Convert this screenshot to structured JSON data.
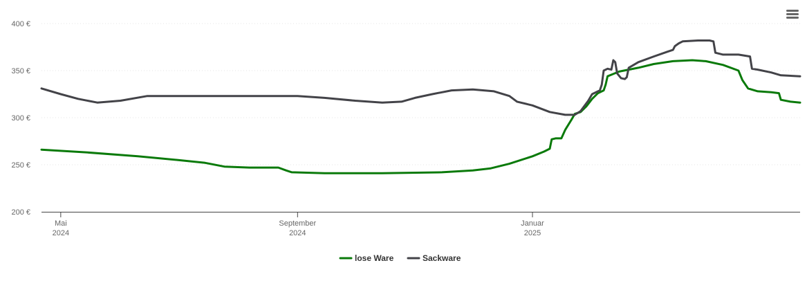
{
  "chart_data": {
    "type": "line",
    "title": "",
    "xlabel": "",
    "ylabel": "",
    "ylim": [
      200,
      400
    ],
    "yticks": [
      200,
      250,
      300,
      350,
      400
    ],
    "ytick_labels": [
      "200 €",
      "250 €",
      "300 €",
      "350 €",
      "400 €"
    ],
    "xticks": [
      {
        "date": "2024-05-01",
        "line1": "Mai",
        "line2": "2024"
      },
      {
        "date": "2024-09-01",
        "line1": "September",
        "line2": "2024"
      },
      {
        "date": "2025-01-01",
        "line1": "Januar",
        "line2": "2025"
      }
    ],
    "grid": true,
    "legend_position": "bottom-center",
    "series": [
      {
        "name": "lose Ware",
        "color": "#0a7a0a",
        "points": [
          [
            "2024-04-21",
            266
          ],
          [
            "2024-05-15",
            263
          ],
          [
            "2024-06-10",
            259
          ],
          [
            "2024-07-01",
            255
          ],
          [
            "2024-07-15",
            252
          ],
          [
            "2024-07-25",
            248
          ],
          [
            "2024-08-07",
            247
          ],
          [
            "2024-08-15",
            247
          ],
          [
            "2024-08-22",
            247
          ],
          [
            "2024-08-26",
            244
          ],
          [
            "2024-08-29",
            242
          ],
          [
            "2024-09-15",
            241
          ],
          [
            "2024-10-15",
            241
          ],
          [
            "2024-11-15",
            242
          ],
          [
            "2024-12-01",
            244
          ],
          [
            "2024-12-10",
            246
          ],
          [
            "2024-12-20",
            251
          ],
          [
            "2025-01-01",
            259
          ],
          [
            "2025-01-07",
            264
          ],
          [
            "2025-01-10",
            267
          ],
          [
            "2025-01-11",
            277
          ],
          [
            "2025-01-13",
            278
          ],
          [
            "2025-01-16",
            278
          ],
          [
            "2025-01-18",
            287
          ],
          [
            "2025-01-21",
            297
          ],
          [
            "2025-01-23",
            304
          ],
          [
            "2025-01-26",
            306
          ],
          [
            "2025-01-29",
            312
          ],
          [
            "2025-02-01",
            320
          ],
          [
            "2025-02-04",
            326
          ],
          [
            "2025-02-07",
            329
          ],
          [
            "2025-02-08",
            335
          ],
          [
            "2025-02-09",
            344
          ],
          [
            "2025-02-15",
            349
          ],
          [
            "2025-02-25",
            353
          ],
          [
            "2025-03-05",
            357
          ],
          [
            "2025-03-15",
            360
          ],
          [
            "2025-03-25",
            361
          ],
          [
            "2025-04-01",
            360
          ],
          [
            "2025-04-10",
            356
          ],
          [
            "2025-04-18",
            350
          ],
          [
            "2025-04-20",
            340
          ],
          [
            "2025-04-23",
            331
          ],
          [
            "2025-04-28",
            328
          ],
          [
            "2025-05-05",
            327
          ],
          [
            "2025-05-09",
            326
          ],
          [
            "2025-05-10",
            319
          ],
          [
            "2025-05-15",
            317
          ],
          [
            "2025-05-20",
            316
          ]
        ]
      },
      {
        "name": "Sackware",
        "color": "#434348",
        "points": [
          [
            "2024-04-21",
            331
          ],
          [
            "2024-05-01",
            325
          ],
          [
            "2024-05-10",
            320
          ],
          [
            "2024-05-20",
            316
          ],
          [
            "2024-06-01",
            318
          ],
          [
            "2024-06-15",
            323
          ],
          [
            "2024-07-15",
            323
          ],
          [
            "2024-08-15",
            323
          ],
          [
            "2024-09-01",
            323
          ],
          [
            "2024-09-15",
            321
          ],
          [
            "2024-10-01",
            318
          ],
          [
            "2024-10-15",
            316
          ],
          [
            "2024-10-25",
            317
          ],
          [
            "2024-11-01",
            321
          ],
          [
            "2024-11-10",
            325
          ],
          [
            "2024-11-20",
            329
          ],
          [
            "2024-12-01",
            330
          ],
          [
            "2024-12-12",
            328
          ],
          [
            "2024-12-20",
            323
          ],
          [
            "2024-12-24",
            317
          ],
          [
            "2025-01-01",
            313
          ],
          [
            "2025-01-10",
            306
          ],
          [
            "2025-01-18",
            303
          ],
          [
            "2025-01-23",
            303
          ],
          [
            "2025-01-26",
            307
          ],
          [
            "2025-01-30",
            318
          ],
          [
            "2025-02-01",
            325
          ],
          [
            "2025-02-05",
            329
          ],
          [
            "2025-02-06",
            335
          ],
          [
            "2025-02-07",
            350
          ],
          [
            "2025-02-09",
            352
          ],
          [
            "2025-02-11",
            351
          ],
          [
            "2025-02-12",
            361
          ],
          [
            "2025-02-13",
            359
          ],
          [
            "2025-02-14",
            347
          ],
          [
            "2025-02-16",
            342
          ],
          [
            "2025-02-18",
            341
          ],
          [
            "2025-02-19",
            343
          ],
          [
            "2025-02-20",
            353
          ],
          [
            "2025-02-25",
            359
          ],
          [
            "2025-03-05",
            365
          ],
          [
            "2025-03-12",
            370
          ],
          [
            "2025-03-15",
            372
          ],
          [
            "2025-03-16",
            376
          ],
          [
            "2025-03-18",
            379
          ],
          [
            "2025-03-20",
            381
          ],
          [
            "2025-03-28",
            382
          ],
          [
            "2025-04-03",
            382
          ],
          [
            "2025-04-05",
            381
          ],
          [
            "2025-04-06",
            369
          ],
          [
            "2025-04-10",
            367
          ],
          [
            "2025-04-18",
            367
          ],
          [
            "2025-04-24",
            365
          ],
          [
            "2025-04-25",
            352
          ],
          [
            "2025-04-28",
            351
          ],
          [
            "2025-05-05",
            348
          ],
          [
            "2025-05-10",
            345
          ],
          [
            "2025-05-20",
            344
          ]
        ]
      }
    ]
  },
  "icons": {
    "menu": "hamburger-menu-icon"
  }
}
